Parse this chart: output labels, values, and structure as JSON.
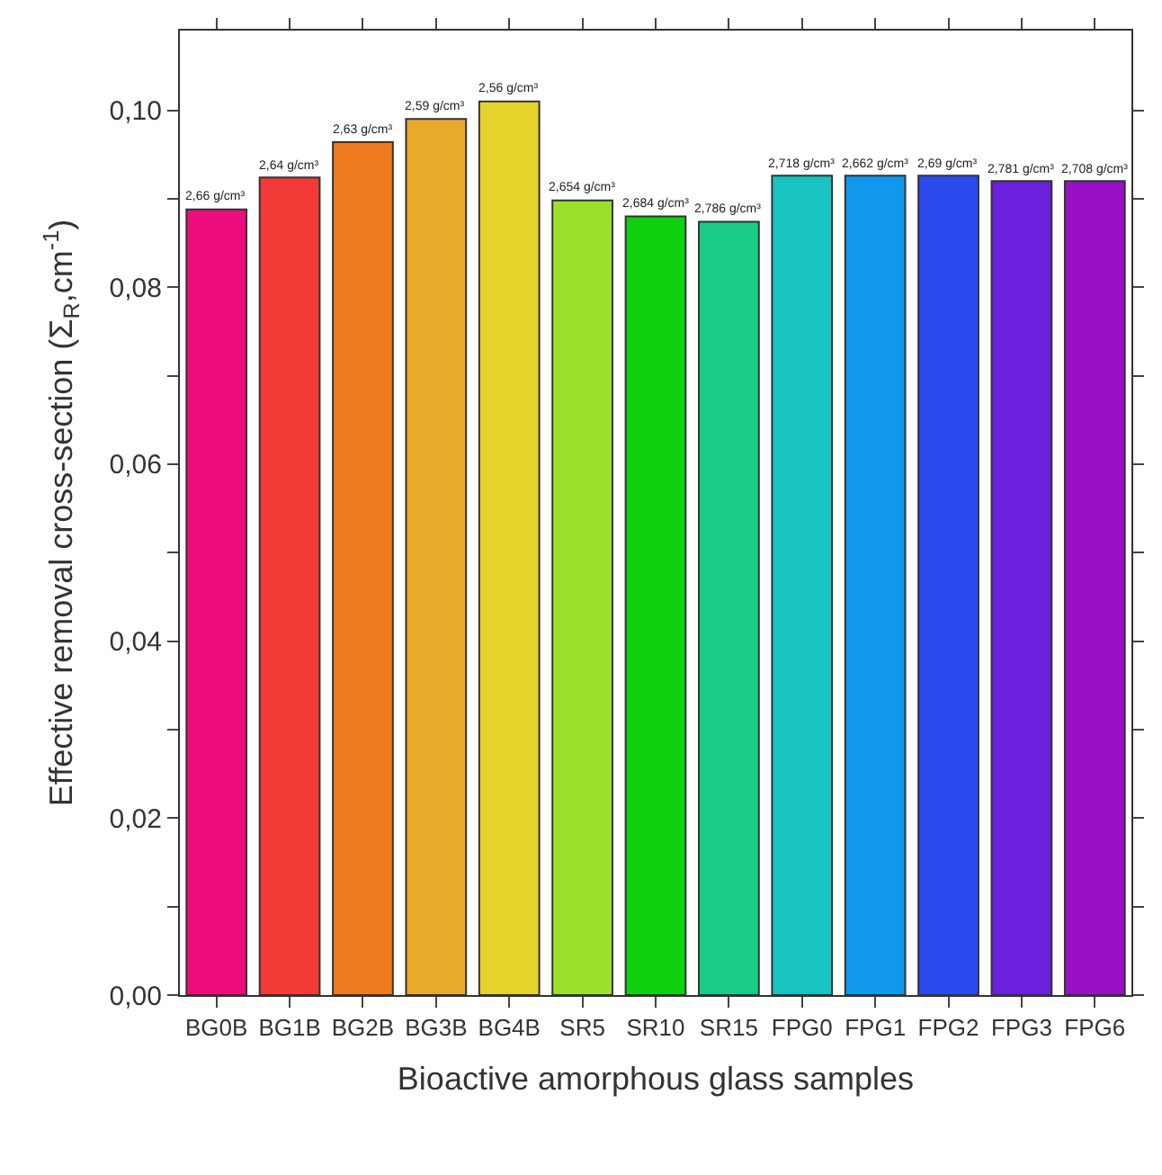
{
  "chart_data": {
    "type": "bar",
    "xlabel": "Bioactive amorphous glass samples",
    "ylabel": "Effective removal cross-section (Σ$_{R}$,cm$^{-1}$)",
    "categories": [
      "BG0B",
      "BG1B",
      "BG2B",
      "BG3B",
      "BG4B",
      "SR5",
      "SR10",
      "SR15",
      "FPG0",
      "FPG1",
      "FPG2",
      "FPG3",
      "FPG6"
    ],
    "values": [
      0.0888,
      0.0924,
      0.0964,
      0.099,
      0.101,
      0.0898,
      0.088,
      0.0874,
      0.0926,
      0.0926,
      0.0926,
      0.092,
      0.092
    ],
    "colors": [
      "#ec0c7c",
      "#f23a36",
      "#f07a1e",
      "#e8aa2a",
      "#e6d42a",
      "#9be12c",
      "#10d010",
      "#18cc86",
      "#18c4c0",
      "#1098ee",
      "#2a4aee",
      "#6a20dc",
      "#9a10c4"
    ],
    "annotations": [
      {
        "text": "2,66 g/cm³",
        "x": "BG0B",
        "y": 0.0888
      },
      {
        "text": "2,64 g/cm³",
        "x": "BG1B",
        "y": 0.0924
      },
      {
        "text": "2,63 g/cm³",
        "x": "BG2B",
        "y": 0.0964
      },
      {
        "text": "2,59 g/cm³",
        "x": "BG3B",
        "y": 0.099
      },
      {
        "text": "2,56 g/cm³",
        "x": "BG4B",
        "y": 0.101
      },
      {
        "text": "2,654 g/cm³",
        "x": "SR5",
        "y": 0.0898
      },
      {
        "text": "2,684 g/cm³",
        "x": "SR10",
        "y": 0.088
      },
      {
        "text": "2,786 g/cm³",
        "x": "SR15",
        "y": 0.0874
      },
      {
        "text": "2,718 g/cm³",
        "x": "FPG0",
        "y": 0.0926
      },
      {
        "text": "2,662 g/cm³",
        "x": "FPG1",
        "y": 0.0926
      },
      {
        "text": "2,69 g/cm³",
        "x": "FPG2",
        "y": 0.0926
      },
      {
        "text": "2,781 g/cm³",
        "x": "FPG3",
        "y": 0.092
      },
      {
        "text": "2,708 g/cm³",
        "x": "FPG6",
        "y": 0.092
      }
    ],
    "ylim": [
      0,
      0.109
    ],
    "yticks": [
      {
        "value": 0,
        "label": "0,00"
      },
      {
        "value": 0.01,
        "label": null
      },
      {
        "value": 0.02,
        "label": "0,02"
      },
      {
        "value": 0.03,
        "label": null
      },
      {
        "value": 0.04,
        "label": "0,04"
      },
      {
        "value": 0.05,
        "label": null
      },
      {
        "value": 0.06,
        "label": "0,06"
      },
      {
        "value": 0.07,
        "label": null
      },
      {
        "value": 0.08,
        "label": "0,08"
      },
      {
        "value": 0.09,
        "label": null
      },
      {
        "value": 0.1,
        "label": "0,10"
      }
    ]
  }
}
